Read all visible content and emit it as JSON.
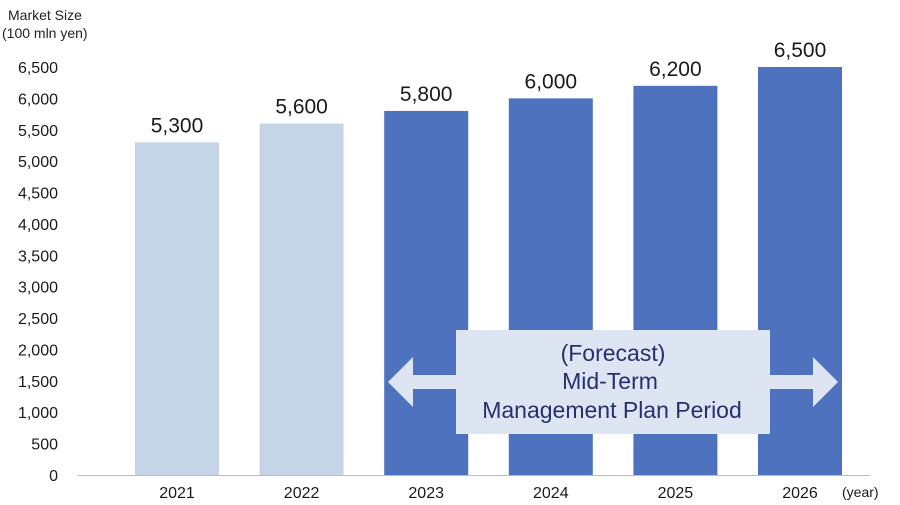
{
  "chart_data": {
    "type": "bar",
    "ylabel_line1": "Market Size",
    "ylabel_line2": "(100 mln yen)",
    "xunit": "(year)",
    "categories": [
      "2021",
      "2022",
      "2023",
      "2024",
      "2025",
      "2026"
    ],
    "values": [
      5300,
      5600,
      5800,
      6000,
      6200,
      6500
    ],
    "value_labels": [
      "5,300",
      "5,600",
      "5,800",
      "6,000",
      "6,200",
      "6,500"
    ],
    "ylim": [
      0,
      6500
    ],
    "yticks": [
      0,
      500,
      1000,
      1500,
      2000,
      2500,
      3000,
      3500,
      4000,
      4500,
      5000,
      5500,
      6000,
      6500
    ],
    "ytick_labels": [
      "0",
      "500",
      "1,000",
      "1,500",
      "2,000",
      "2,500",
      "3,000",
      "3,500",
      "4,000",
      "4,500",
      "5,000",
      "5,500",
      "6,000",
      "6,500"
    ],
    "grid": false,
    "colors": {
      "actual": "#c5d4e7",
      "forecast": "#4f72bf"
    },
    "forecast_from_index": 2,
    "annotation": {
      "line1": "(Forecast)",
      "line2": "Mid-Term",
      "line3": "Management Plan Period"
    }
  }
}
